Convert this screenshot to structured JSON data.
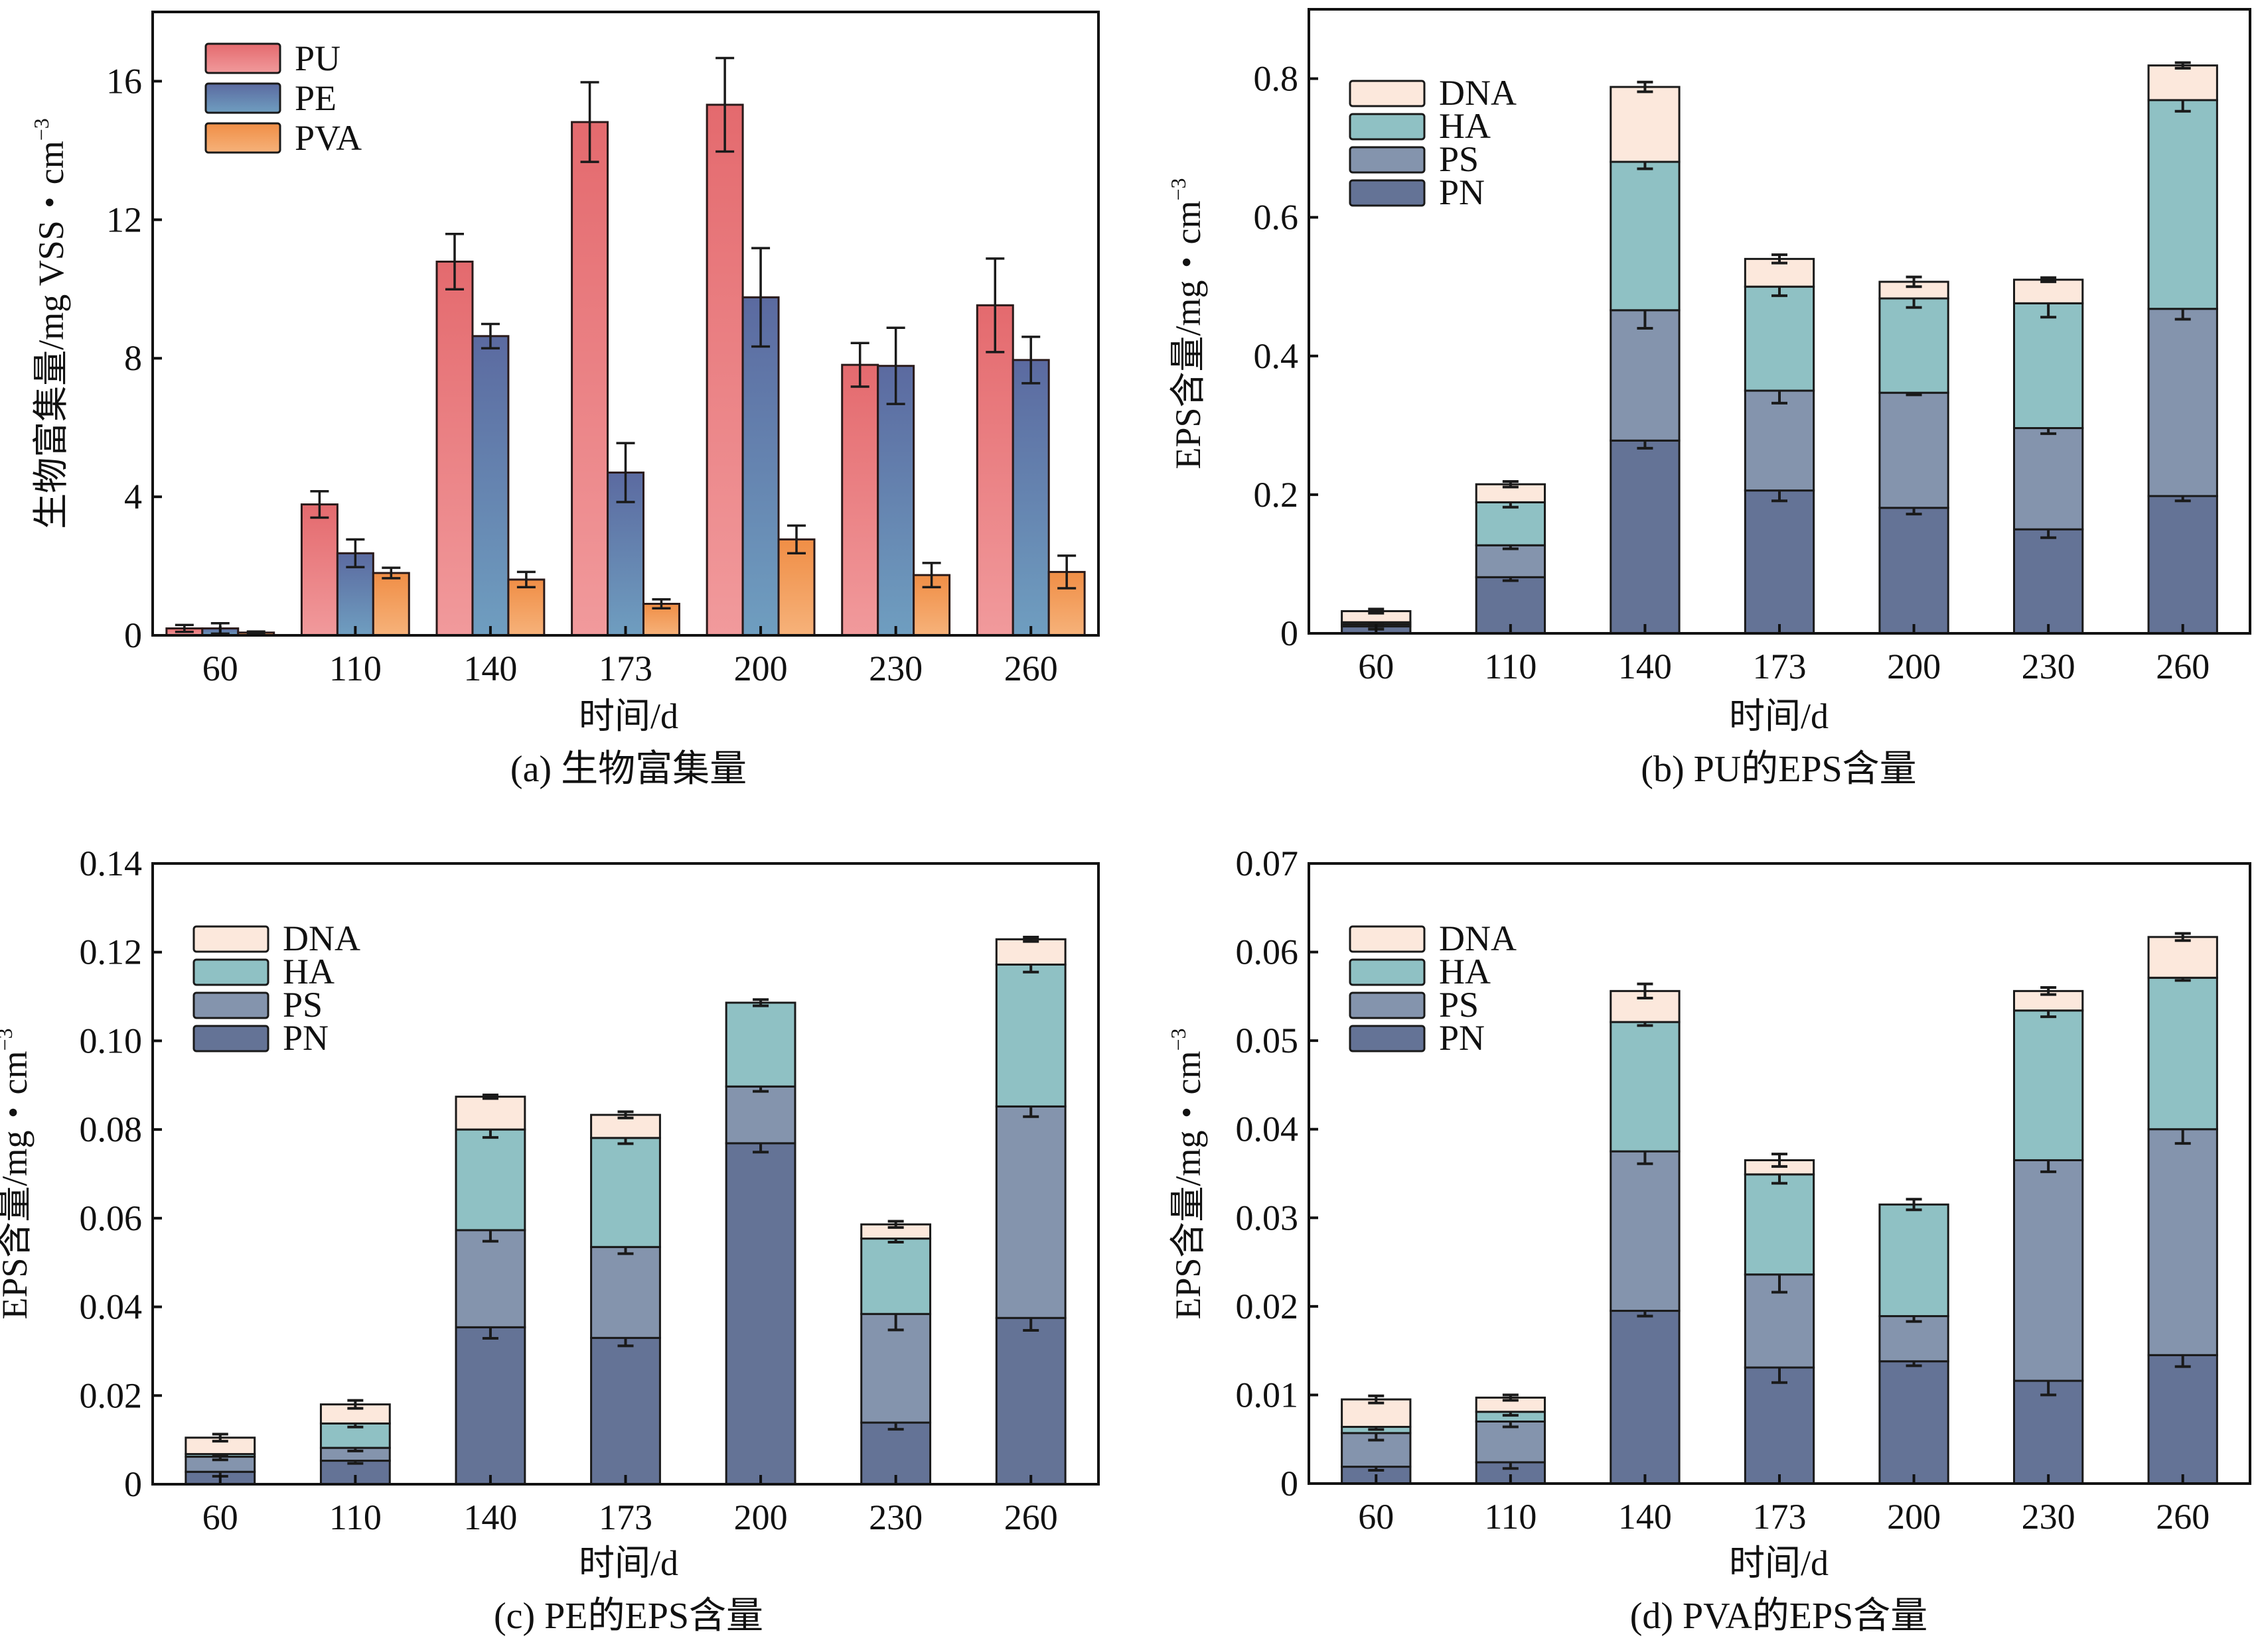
{
  "chart_data": [
    {
      "id": "a",
      "type": "bar",
      "stacked": false,
      "caption": "(a) 生物富集量",
      "xlabel": "时间/d",
      "ylabel": "生物富集量/mg VSS・cm",
      "ylabel_sup": "−3",
      "categories": [
        "60",
        "110",
        "140",
        "173",
        "200",
        "230",
        "260"
      ],
      "ylim": [
        0,
        18
      ],
      "yticks": [
        0,
        4,
        8,
        12,
        16
      ],
      "ytick_labels": [
        "0",
        "4",
        "8",
        "12",
        "16"
      ],
      "legend_position": "top-left",
      "series": [
        {
          "name": "PU",
          "color_top": "#e46a6e",
          "color_bottom": "#f19a9c",
          "values": [
            0.2,
            3.78,
            10.79,
            14.82,
            15.32,
            7.81,
            9.53
          ],
          "err": [
            0.1,
            0.38,
            0.8,
            1.15,
            1.35,
            0.63,
            1.35
          ]
        },
        {
          "name": "PE",
          "color_top": "#5b6aa0",
          "color_bottom": "#6f9ec0",
          "values": [
            0.2,
            2.37,
            8.64,
            4.7,
            9.76,
            7.78,
            7.95
          ],
          "err": [
            0.15,
            0.4,
            0.35,
            0.85,
            1.42,
            1.1,
            0.67
          ]
        },
        {
          "name": "PVA",
          "color_top": "#f08e46",
          "color_bottom": "#f6b27a",
          "values": [
            0.08,
            1.8,
            1.61,
            0.91,
            2.77,
            1.74,
            1.83
          ],
          "err": [
            0.03,
            0.15,
            0.22,
            0.13,
            0.4,
            0.35,
            0.47
          ]
        }
      ]
    },
    {
      "id": "b",
      "type": "bar",
      "stacked": true,
      "caption": "(b) PU的EPS含量",
      "xlabel": "时间/d",
      "ylabel": "EPS含量/mg・cm",
      "ylabel_sup": "−3",
      "categories": [
        "60",
        "110",
        "140",
        "173",
        "200",
        "230",
        "260"
      ],
      "ylim": [
        0,
        0.9
      ],
      "yticks": [
        0,
        0.2,
        0.4,
        0.6,
        0.8
      ],
      "ytick_labels": [
        "0",
        "0.2",
        "0.4",
        "0.6",
        "0.8"
      ],
      "legend_position": "top-left",
      "series": [
        {
          "name": "PN",
          "color": "#647396",
          "values": [
            0.01,
            0.081,
            0.278,
            0.206,
            0.181,
            0.15,
            0.198
          ],
          "err": [
            0.004,
            0.005,
            0.011,
            0.015,
            0.009,
            0.012,
            0.007
          ]
        },
        {
          "name": "PS",
          "color": "#8494ad",
          "values": [
            0.003,
            0.046,
            0.188,
            0.144,
            0.166,
            0.146,
            0.27
          ],
          "err": [
            0.003,
            0.005,
            0.026,
            0.018,
            0.003,
            0.008,
            0.015
          ]
        },
        {
          "name": "HA",
          "color": "#8fc1c4",
          "values": [
            0.003,
            0.062,
            0.214,
            0.15,
            0.136,
            0.18,
            0.301
          ],
          "err": [
            0.002,
            0.007,
            0.01,
            0.013,
            0.013,
            0.02,
            0.016
          ]
        },
        {
          "name": "DNA",
          "color": "#fce8dc",
          "values": [
            0.016,
            0.026,
            0.108,
            0.04,
            0.024,
            0.034,
            0.05
          ],
          "err": [
            0.003,
            0.004,
            0.007,
            0.006,
            0.007,
            0.003,
            0.004
          ]
        }
      ]
    },
    {
      "id": "c",
      "type": "bar",
      "stacked": true,
      "caption": "(c) PE的EPS含量",
      "xlabel": "时间/d",
      "ylabel": "EPS含量/mg・cm",
      "ylabel_sup": "−3",
      "categories": [
        "60",
        "110",
        "140",
        "173",
        "200",
        "230",
        "260"
      ],
      "ylim": [
        0,
        0.14
      ],
      "yticks": [
        0,
        0.02,
        0.04,
        0.06,
        0.08,
        0.1,
        0.12,
        0.14
      ],
      "ytick_labels": [
        "0",
        "0.02",
        "0.04",
        "0.06",
        "0.08",
        "0.10",
        "0.12",
        "0.14"
      ],
      "legend_position": "top-left",
      "series": [
        {
          "name": "PN",
          "color": "#647396",
          "values": [
            0.0028,
            0.0053,
            0.0354,
            0.033,
            0.0769,
            0.0139,
            0.0375
          ],
          "err": [
            0.001,
            0.0006,
            0.0025,
            0.0018,
            0.002,
            0.0015,
            0.0028
          ]
        },
        {
          "name": "PS",
          "color": "#8494ad",
          "values": [
            0.0034,
            0.0029,
            0.0219,
            0.0205,
            0.0128,
            0.0245,
            0.0477
          ],
          "err": [
            0.0007,
            0.0007,
            0.0025,
            0.0015,
            0.0011,
            0.0036,
            0.0023
          ]
        },
        {
          "name": "HA",
          "color": "#8fc1c4",
          "values": [
            0.0006,
            0.0055,
            0.0227,
            0.0246,
            0.0189,
            0.017,
            0.032
          ],
          "err": [
            0.0004,
            0.0008,
            0.0018,
            0.0013,
            0.0007,
            0.0008,
            0.0017
          ]
        },
        {
          "name": "DNA",
          "color": "#fce8dc",
          "values": [
            0.0037,
            0.0043,
            0.0074,
            0.0052,
            0.0,
            0.0032,
            0.0057
          ],
          "err": [
            0.0008,
            0.0009,
            0.0004,
            0.0007,
            0.0,
            0.0007,
            0.0005
          ]
        }
      ]
    },
    {
      "id": "d",
      "type": "bar",
      "stacked": true,
      "caption": "(d) PVA的EPS含量",
      "xlabel": "时间/d",
      "ylabel": "EPS含量/mg・cm",
      "ylabel_sup": "−3",
      "categories": [
        "60",
        "110",
        "140",
        "173",
        "200",
        "230",
        "260"
      ],
      "ylim": [
        0,
        0.07
      ],
      "yticks": [
        0,
        0.01,
        0.02,
        0.03,
        0.04,
        0.05,
        0.06,
        0.07
      ],
      "ytick_labels": [
        "0",
        "0.01",
        "0.02",
        "0.03",
        "0.04",
        "0.05",
        "0.06",
        "0.07"
      ],
      "legend_position": "top-left",
      "series": [
        {
          "name": "PN",
          "color": "#647396",
          "values": [
            0.0019,
            0.0024,
            0.0195,
            0.0131,
            0.0138,
            0.0116,
            0.0145
          ],
          "err": [
            0.0004,
            0.0007,
            0.0006,
            0.0017,
            0.0005,
            0.0016,
            0.0013
          ]
        },
        {
          "name": "PS",
          "color": "#8494ad",
          "values": [
            0.0038,
            0.0046,
            0.018,
            0.0105,
            0.0051,
            0.0249,
            0.0255
          ],
          "err": [
            0.0008,
            0.0006,
            0.0014,
            0.002,
            0.0006,
            0.0013,
            0.0016
          ]
        },
        {
          "name": "HA",
          "color": "#8fc1c4",
          "values": [
            0.0007,
            0.0011,
            0.0146,
            0.0113,
            0.0126,
            0.0169,
            0.0171
          ],
          "err": [
            0.0003,
            0.0004,
            0.0004,
            0.001,
            0.0006,
            0.0007,
            0.0003
          ]
        },
        {
          "name": "DNA",
          "color": "#fce8dc",
          "values": [
            0.0031,
            0.0016,
            0.0035,
            0.0016,
            0.0,
            0.0022,
            0.0046
          ],
          "err": [
            0.0004,
            0.0003,
            0.0008,
            0.0007,
            0.0,
            0.0004,
            0.0004
          ]
        }
      ]
    }
  ]
}
